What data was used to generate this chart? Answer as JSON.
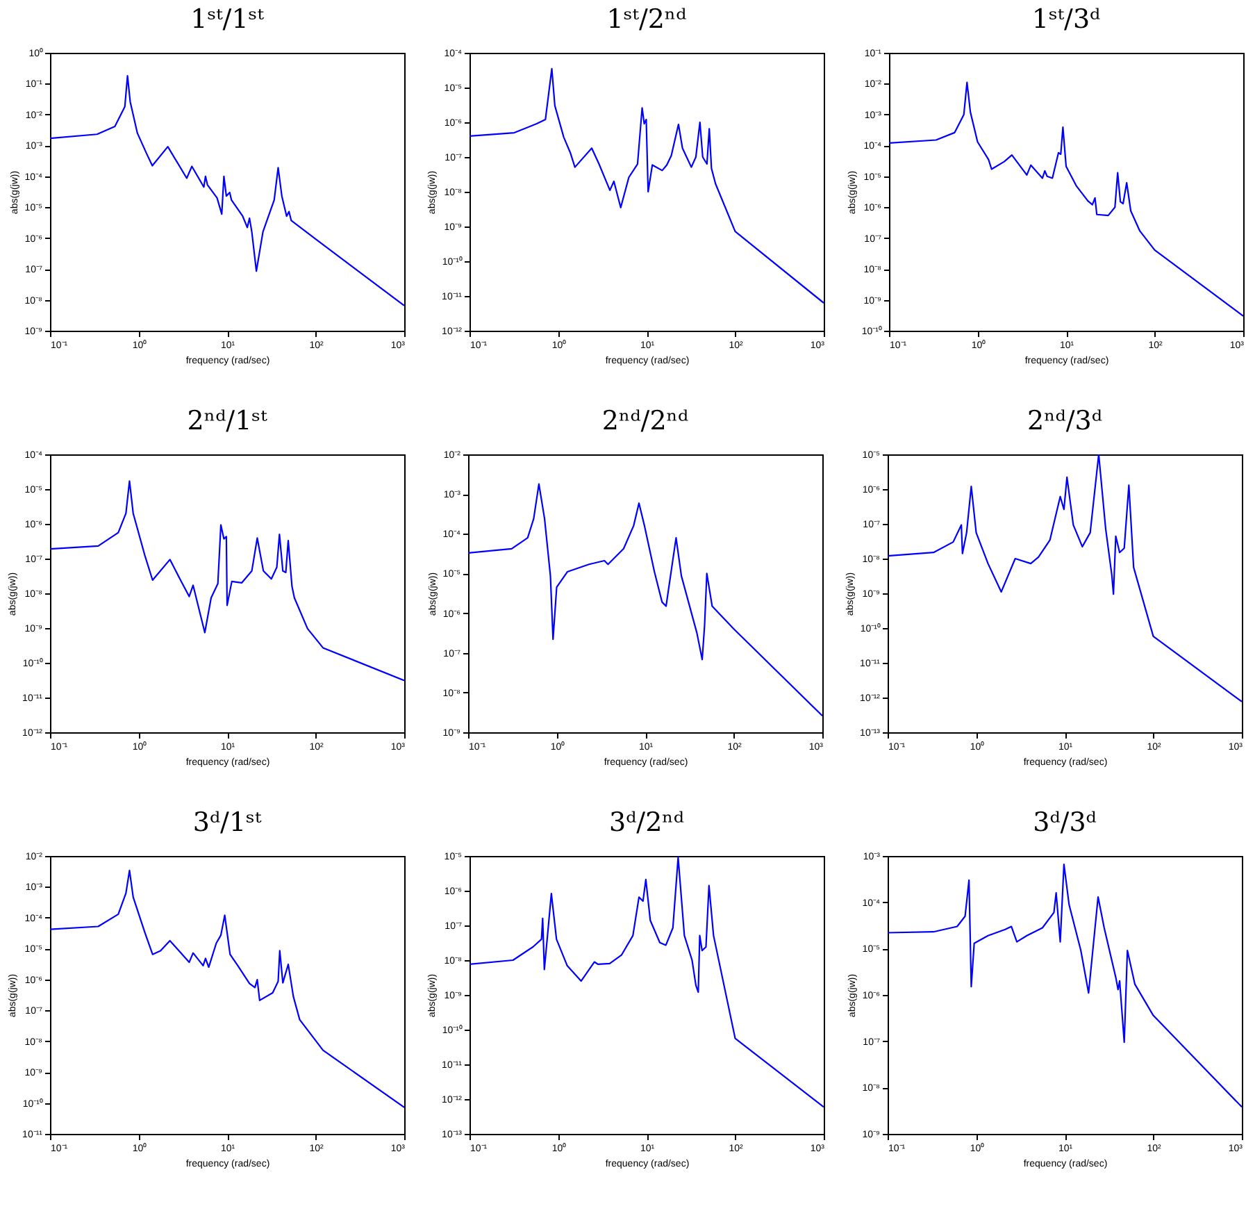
{
  "chart_data": [
    {
      "type": "line",
      "title": "1ˢᵗ/1ˢᵗ",
      "xlabel": "frequency (rad/sec)",
      "ylabel": "abs(g(jw))",
      "log": "xy",
      "xlim": [
        0.1,
        1000
      ],
      "ylim": [
        1e-09,
        1
      ],
      "xticks": [
        {
          "value": 0.1,
          "label": "10⁻¹"
        },
        {
          "value": 1,
          "label": "10⁰"
        },
        {
          "value": 10,
          "label": "10¹"
        },
        {
          "value": 100,
          "label": "10²"
        },
        {
          "value": 1000,
          "label": "10³"
        }
      ],
      "yticks": [
        {
          "value": 1e-09,
          "label": "10⁻⁹"
        },
        {
          "value": 1e-08,
          "label": "10⁻⁸"
        },
        {
          "value": 1e-07,
          "label": "10⁻⁷"
        },
        {
          "value": 1e-06,
          "label": "10⁻⁶"
        },
        {
          "value": 1e-05,
          "label": "10⁻⁵"
        },
        {
          "value": 0.0001,
          "label": "10⁻⁴"
        },
        {
          "value": 0.001,
          "label": "10⁻³"
        },
        {
          "value": 0.01,
          "label": "10⁻²"
        },
        {
          "value": 0.1,
          "label": "10⁻¹"
        },
        {
          "value": 1,
          "label": "10⁰"
        }
      ],
      "x": [
        0.1,
        0.34,
        0.54,
        0.7,
        0.75,
        0.805,
        0.97,
        1.23,
        1.43,
        2.14,
        3.5,
        4.0,
        5.46,
        5.7,
        6.0,
        7.7,
        8.7,
        9.2,
        9.8,
        10.7,
        11.2,
        15,
        16.9,
        17.9,
        19,
        21.4,
        25.4,
        34,
        37.7,
        41.5,
        47,
        50,
        53,
        100,
        1000
      ],
      "series": [
        {
          "color": "#0000ff",
          "values": [
            0.0017,
            0.0023,
            0.0041,
            0.018,
            0.18,
            0.026,
            0.0025,
            0.00055,
            0.00022,
            0.00091,
            8.7e-05,
            0.00021,
            4.5e-05,
            0.0001,
            5.3e-05,
            2e-05,
            6e-06,
            0.0001,
            2.3e-05,
            3e-05,
            1.7e-05,
            5.1e-06,
            2.2e-06,
            4.4e-06,
            1.6e-06,
            8.5e-08,
            1.6e-06,
            1.7e-05,
            0.00019,
            2.3e-05,
            5.1e-06,
            7.2e-06,
            3.7e-06,
            9.3e-07,
            6.5e-09
          ]
        }
      ]
    },
    {
      "type": "line",
      "title": "1ˢᵗ/2ⁿᵈ",
      "xlabel": "frequency (rad/sec)",
      "ylabel": "abs(g(jw))",
      "log": "xy",
      "xlim": [
        0.1,
        1000
      ],
      "ylim": [
        1e-12,
        0.0001
      ],
      "xticks": [
        {
          "value": 0.1,
          "label": "10⁻¹"
        },
        {
          "value": 1,
          "label": "10⁰"
        },
        {
          "value": 10,
          "label": "10¹"
        },
        {
          "value": 100,
          "label": "10²"
        },
        {
          "value": 1000,
          "label": "10³"
        }
      ],
      "yticks": [
        {
          "value": 1e-12,
          "label": "10⁻¹²"
        },
        {
          "value": 1e-11,
          "label": "10⁻¹¹"
        },
        {
          "value": 1e-10,
          "label": "10⁻¹⁰"
        },
        {
          "value": 1e-09,
          "label": "10⁻⁹"
        },
        {
          "value": 1e-08,
          "label": "10⁻⁸"
        },
        {
          "value": 1e-07,
          "label": "10⁻⁷"
        },
        {
          "value": 1e-06,
          "label": "10⁻⁶"
        },
        {
          "value": 1e-05,
          "label": "10⁻⁵"
        },
        {
          "value": 0.0001,
          "label": "10⁻⁴"
        }
      ],
      "x": [
        0.1,
        0.32,
        0.575,
        0.72,
        0.85,
        0.92,
        1.16,
        1.38,
        1.55,
        2.4,
        2.9,
        3.85,
        4.27,
        5.1,
        6.3,
        7.9,
        8.9,
        9.4,
        9.9,
        10.4,
        11.6,
        15,
        16.9,
        19,
        22.9,
        25.4,
        32,
        36,
        40,
        43,
        48,
        51,
        54,
        60,
        100,
        1000
      ],
      "series": [
        {
          "color": "#0000ff",
          "values": [
            4e-07,
            5e-07,
            9.1e-07,
            1.2e-06,
            3.5e-05,
            3e-06,
            3.7e-07,
            1.3e-07,
            5.1e-08,
            1.8e-07,
            6.3e-08,
            1.1e-08,
            2e-08,
            3.5e-09,
            2.6e-08,
            6.3e-08,
            2.6e-06,
            9.1e-07,
            1.2e-06,
            1e-08,
            5.9e-08,
            4.1e-08,
            5.9e-08,
            1.1e-07,
            8.7e-07,
            1.8e-07,
            5.1e-08,
            1e-07,
            1e-06,
            1e-07,
            6.3e-08,
            6.5e-07,
            4.7e-08,
            1.7e-08,
            7.2e-10,
            6.3e-12
          ]
        }
      ]
    },
    {
      "type": "line",
      "title": "1ˢᵗ/3ᵈ",
      "xlabel": "frequency (rad/sec)",
      "ylabel": "abs(g(jw))",
      "log": "xy",
      "xlim": [
        0.1,
        1000
      ],
      "ylim": [
        1e-10,
        0.1
      ],
      "xticks": [
        {
          "value": 0.1,
          "label": "10⁻¹"
        },
        {
          "value": 1,
          "label": "10⁰"
        },
        {
          "value": 10,
          "label": "10¹"
        },
        {
          "value": 100,
          "label": "10²"
        },
        {
          "value": 1000,
          "label": "10³"
        }
      ],
      "yticks": [
        {
          "value": 1e-10,
          "label": "10⁻¹⁰"
        },
        {
          "value": 1e-09,
          "label": "10⁻⁹"
        },
        {
          "value": 1e-08,
          "label": "10⁻⁸"
        },
        {
          "value": 1e-07,
          "label": "10⁻⁷"
        },
        {
          "value": 1e-06,
          "label": "10⁻⁶"
        },
        {
          "value": 1e-05,
          "label": "10⁻⁵"
        },
        {
          "value": 0.0001,
          "label": "10⁻⁴"
        },
        {
          "value": 0.001,
          "label": "10⁻³"
        },
        {
          "value": 0.01,
          "label": "10⁻²"
        },
        {
          "value": 0.1,
          "label": "10⁻¹"
        }
      ],
      "x": [
        0.1,
        0.34,
        0.55,
        0.7,
        0.76,
        0.83,
        1.0,
        1.33,
        1.44,
        2.0,
        2.44,
        3.6,
        4.0,
        5.4,
        5.75,
        6.1,
        7.0,
        8.2,
        8.7,
        9.2,
        10,
        13.1,
        17.6,
        19.8,
        21.2,
        22.2,
        29.9,
        35.6,
        38.2,
        41,
        44,
        48.3,
        53.7,
        68,
        100,
        1000
      ],
      "series": [
        {
          "color": "#0000ff",
          "values": [
            0.00012,
            0.00015,
            0.00026,
            0.001,
            0.011,
            0.0012,
            0.00013,
            3.5e-05,
            1.7e-05,
            3e-05,
            4.9e-05,
            1.1e-05,
            2.3e-05,
            8.7e-06,
            1.5e-05,
            1e-05,
            8.7e-06,
            5.8e-05,
            5.2e-05,
            0.00039,
            2.1e-05,
            4.8e-06,
            1.6e-06,
            1.2e-06,
            2e-06,
            5.8e-07,
            5.4e-07,
            1e-06,
            1.3e-05,
            1.5e-06,
            1.3e-06,
            6.2e-06,
            7.6e-07,
            1.7e-07,
            4.1e-08,
            3e-10
          ]
        }
      ]
    },
    {
      "type": "line",
      "title": "2ⁿᵈ/1ˢᵗ",
      "xlabel": "frequency (rad/sec)",
      "ylabel": "abs(g(jw))",
      "log": "xy",
      "xlim": [
        0.1,
        1000
      ],
      "ylim": [
        1e-12,
        0.0001
      ],
      "xticks": [
        {
          "value": 0.1,
          "label": "10⁻¹"
        },
        {
          "value": 1,
          "label": "10⁰"
        },
        {
          "value": 10,
          "label": "10¹"
        },
        {
          "value": 100,
          "label": "10²"
        },
        {
          "value": 1000,
          "label": "10³"
        }
      ],
      "yticks": [
        {
          "value": 1e-12,
          "label": "10⁻¹²"
        },
        {
          "value": 1e-11,
          "label": "10⁻¹¹"
        },
        {
          "value": 1e-10,
          "label": "10⁻¹⁰"
        },
        {
          "value": 1e-09,
          "label": "10⁻⁹"
        },
        {
          "value": 1e-08,
          "label": "10⁻⁸"
        },
        {
          "value": 1e-07,
          "label": "10⁻⁷"
        },
        {
          "value": 1e-06,
          "label": "10⁻⁶"
        },
        {
          "value": 1e-05,
          "label": "10⁻⁵"
        },
        {
          "value": 0.0001,
          "label": "10⁻⁴"
        }
      ],
      "x": [
        0.1,
        0.35,
        0.59,
        0.72,
        0.79,
        0.87,
        1.17,
        1.44,
        2.26,
        2.93,
        3.73,
        4.13,
        5.6,
        6.6,
        7.86,
        8.5,
        9.2,
        9.8,
        10,
        11.3,
        14.6,
        19,
        21.9,
        25.7,
        31.6,
        36.4,
        39,
        42.6,
        46,
        49,
        54,
        57.5,
        81,
        121,
        1000
      ],
      "series": [
        {
          "color": "#0000ff",
          "values": [
            1.9e-07,
            2.3e-07,
            5.6e-07,
            2e-06,
            1.7e-05,
            2e-06,
            1.3e-07,
            2.4e-08,
            9.4e-08,
            2.6e-08,
            8.1e-09,
            1.7e-08,
            7.4e-10,
            7.4e-09,
            1.9e-08,
            9.3e-07,
            3.7e-07,
            4.3e-07,
            4.5e-09,
            2.2e-08,
            2e-08,
            4.4e-08,
            3.9e-07,
            4.4e-08,
            2.6e-08,
            5.6e-08,
            5e-07,
            4.4e-08,
            4e-08,
            3.3e-07,
            1.6e-08,
            7.4e-09,
            9.6e-10,
            2.7e-10,
            3.1e-11
          ]
        }
      ]
    },
    {
      "type": "line",
      "title": "2ⁿᵈ/2ⁿᵈ",
      "xlabel": "frequency (rad/sec)",
      "ylabel": "abs(g(jw))",
      "log": "xy",
      "xlim": [
        0.1,
        1000
      ],
      "ylim": [
        1e-09,
        0.01
      ],
      "xticks": [
        {
          "value": 0.1,
          "label": "10⁻¹"
        },
        {
          "value": 1,
          "label": "10⁰"
        },
        {
          "value": 10,
          "label": "10¹"
        },
        {
          "value": 100,
          "label": "10²"
        },
        {
          "value": 1000,
          "label": "10³"
        }
      ],
      "yticks": [
        {
          "value": 1e-09,
          "label": "10⁻⁹"
        },
        {
          "value": 1e-08,
          "label": "10⁻⁸"
        },
        {
          "value": 1e-07,
          "label": "10⁻⁷"
        },
        {
          "value": 1e-06,
          "label": "10⁻⁶"
        },
        {
          "value": 1e-05,
          "label": "10⁻⁵"
        },
        {
          "value": 0.0001,
          "label": "10⁻⁴"
        },
        {
          "value": 0.001,
          "label": "10⁻³"
        },
        {
          "value": 0.01,
          "label": "10⁻²"
        }
      ],
      "x": [
        0.1,
        0.31,
        0.47,
        0.55,
        0.63,
        0.73,
        0.85,
        0.91,
        1.0,
        1.32,
        2.32,
        3.46,
        3.8,
        5.7,
        7.4,
        8.5,
        9.8,
        12.7,
        15.5,
        17.2,
        22.3,
        25.6,
        38.3,
        44,
        46.8,
        49.6,
        57,
        100,
        1000
      ],
      "series": [
        {
          "color": "#0000ff",
          "values": [
            3.3e-05,
            4.2e-05,
            7.9e-05,
            0.00024,
            0.0018,
            0.00024,
            8.7e-06,
            2.2e-07,
            4.5e-06,
            1.1e-05,
            1.7e-05,
            2.1e-05,
            1.7e-05,
            4.2e-05,
            0.00016,
            0.00059,
            0.00016,
            1.1e-05,
            1.9e-06,
            1.5e-06,
            7.9e-05,
            8.7e-06,
            3.2e-07,
            6.8e-08,
            4.9e-07,
            1e-05,
            1.5e-06,
            4e-07,
            2.6e-09
          ]
        }
      ]
    },
    {
      "type": "line",
      "title": "2ⁿᵈ/3ᵈ",
      "xlabel": "frequency (rad/sec)",
      "ylabel": "abs(g(jw))",
      "log": "xy",
      "xlim": [
        0.1,
        1000
      ],
      "ylim": [
        1e-13,
        1e-05
      ],
      "xticks": [
        {
          "value": 0.1,
          "label": "10⁻¹"
        },
        {
          "value": 1,
          "label": "10⁰"
        },
        {
          "value": 10,
          "label": "10¹"
        },
        {
          "value": 100,
          "label": "10²"
        },
        {
          "value": 1000,
          "label": "10³"
        }
      ],
      "yticks": [
        {
          "value": 1e-13,
          "label": "10⁻¹³"
        },
        {
          "value": 1e-12,
          "label": "10⁻¹²"
        },
        {
          "value": 1e-11,
          "label": "10⁻¹¹"
        },
        {
          "value": 1e-10,
          "label": "10⁻¹⁰"
        },
        {
          "value": 1e-09,
          "label": "10⁻⁹"
        },
        {
          "value": 1e-08,
          "label": "10⁻⁸"
        },
        {
          "value": 1e-07,
          "label": "10⁻⁷"
        },
        {
          "value": 1e-06,
          "label": "10⁻⁶"
        },
        {
          "value": 1e-05,
          "label": "10⁻⁵"
        }
      ],
      "x": [
        0.1,
        0.33,
        0.55,
        0.68,
        0.7,
        0.78,
        0.88,
        1.0,
        1.36,
        1.92,
        2.76,
        4.13,
        5.05,
        6.8,
        8.9,
        9.8,
        10.6,
        12.5,
        15.8,
        19.4,
        24.2,
        29,
        34,
        35.5,
        37.7,
        41.7,
        47,
        53,
        60,
        100,
        1000
      ],
      "series": [
        {
          "color": "#0000ff",
          "values": [
            1.2e-08,
            1.5e-08,
            3e-08,
            9.3e-08,
            1.4e-08,
            5.6e-08,
            1.2e-06,
            5.6e-08,
            7.2e-09,
            1.1e-09,
            1e-08,
            7.2e-09,
            1.1e-08,
            3.4e-08,
            6.1e-07,
            2.6e-07,
            2.2e-06,
            9.3e-08,
            2.2e-08,
            5.6e-08,
            1e-05,
            7.2e-08,
            3.4e-09,
            9.5e-10,
            4.4e-08,
            1.5e-08,
            2e-08,
            1.3e-06,
            5.6e-09,
            5.8e-11,
            7.6e-13
          ]
        }
      ]
    },
    {
      "type": "line",
      "title": "3ᵈ/1ˢᵗ",
      "xlabel": "frequency (rad/sec)",
      "ylabel": "abs(g(jw))",
      "log": "xy",
      "xlim": [
        0.1,
        1000
      ],
      "ylim": [
        1e-11,
        0.01
      ],
      "xticks": [
        {
          "value": 0.1,
          "label": "10⁻¹"
        },
        {
          "value": 1,
          "label": "10⁰"
        },
        {
          "value": 10,
          "label": "10¹"
        },
        {
          "value": 100,
          "label": "10²"
        },
        {
          "value": 1000,
          "label": "10³"
        }
      ],
      "yticks": [
        {
          "value": 1e-11,
          "label": "10⁻¹¹"
        },
        {
          "value": 1e-10,
          "label": "10⁻¹⁰"
        },
        {
          "value": 1e-09,
          "label": "10⁻⁹"
        },
        {
          "value": 1e-08,
          "label": "10⁻⁸"
        },
        {
          "value": 1e-07,
          "label": "10⁻⁷"
        },
        {
          "value": 1e-06,
          "label": "10⁻⁶"
        },
        {
          "value": 1e-05,
          "label": "10⁻⁵"
        },
        {
          "value": 0.0001,
          "label": "10⁻⁴"
        },
        {
          "value": 0.001,
          "label": "10⁻³"
        },
        {
          "value": 0.01,
          "label": "10⁻²"
        }
      ],
      "x": [
        0.1,
        0.35,
        0.59,
        0.72,
        0.79,
        0.87,
        1.17,
        1.44,
        1.77,
        2.26,
        3.73,
        4.13,
        5.36,
        5.7,
        6.2,
        7.55,
        8.5,
        9.4,
        10.8,
        13.2,
        17.9,
        20.6,
        21.9,
        23.3,
        32.7,
        37.7,
        39.3,
        42.6,
        49,
        56,
        66,
        121,
        1000
      ],
      "series": [
        {
          "color": "#0000ff",
          "values": [
            4.2e-05,
            5.2e-05,
            0.00013,
            0.00062,
            0.0034,
            0.00046,
            3.5e-05,
            6.5e-06,
            8.5e-06,
            1.8e-05,
            3.6e-06,
            7.2e-06,
            2.8e-06,
            4.8e-06,
            2.5e-06,
            1.5e-05,
            2.7e-05,
            0.00012,
            6.5e-06,
            2.8e-06,
            7.4e-07,
            5.5e-07,
            9.8e-07,
            2.1e-07,
            3.7e-07,
            8.7e-07,
            8.5e-06,
            7.8e-07,
            3.1e-06,
            2.8e-07,
            5e-08,
            5.1e-09,
            7.2e-11
          ]
        }
      ]
    },
    {
      "type": "line",
      "title": "3ᵈ/2ⁿᵈ",
      "xlabel": "frequency (rad/sec)",
      "ylabel": "abs(g(jw))",
      "log": "xy",
      "xlim": [
        0.1,
        1000
      ],
      "ylim": [
        1e-13,
        1e-05
      ],
      "xticks": [
        {
          "value": 0.1,
          "label": "10⁻¹"
        },
        {
          "value": 1,
          "label": "10⁰"
        },
        {
          "value": 10,
          "label": "10¹"
        },
        {
          "value": 100,
          "label": "10²"
        },
        {
          "value": 1000,
          "label": "10³"
        }
      ],
      "yticks": [
        {
          "value": 1e-13,
          "label": "10⁻¹³"
        },
        {
          "value": 1e-12,
          "label": "10⁻¹²"
        },
        {
          "value": 1e-11,
          "label": "10⁻¹¹"
        },
        {
          "value": 1e-10,
          "label": "10⁻¹⁰"
        },
        {
          "value": 1e-09,
          "label": "10⁻⁹"
        },
        {
          "value": 1e-08,
          "label": "10⁻⁸"
        },
        {
          "value": 1e-07,
          "label": "10⁻⁷"
        },
        {
          "value": 1e-06,
          "label": "10⁻⁶"
        },
        {
          "value": 1e-05,
          "label": "10⁻⁵"
        }
      ],
      "x": [
        0.1,
        0.31,
        0.52,
        0.65,
        0.67,
        0.7,
        0.76,
        0.84,
        0.96,
        1.27,
        1.82,
        2.57,
        2.83,
        3.83,
        5.2,
        7.0,
        8.2,
        9.1,
        9.8,
        11.0,
        14.1,
        16.5,
        19.8,
        22.7,
        26.7,
        32.6,
        36,
        38.3,
        39.8,
        42.3,
        46.8,
        50.6,
        57,
        100,
        1000
      ],
      "series": [
        {
          "color": "#0000ff",
          "values": [
            7.6e-09,
            1e-08,
            2.4e-08,
            4e-08,
            1.6e-07,
            5.4e-09,
            5.1e-08,
            8.3e-07,
            4e-08,
            6.9e-09,
            2.5e-09,
            8.9e-09,
            7.6e-09,
            8e-09,
            1.4e-08,
            5.1e-08,
            6.5e-07,
            5e-07,
            2.1e-06,
            1.4e-07,
            3.2e-08,
            2.7e-08,
            8.5e-08,
            9.1e-06,
            5.1e-08,
            1e-08,
            1.9e-09,
            1.2e-09,
            5.1e-08,
            1.9e-08,
            2.4e-08,
            1.4e-06,
            5.1e-08,
            5.6e-11,
            5.9e-13
          ]
        }
      ]
    },
    {
      "type": "line",
      "title": "3ᵈ/3ᵈ",
      "xlabel": "frequency (rad/sec)",
      "ylabel": "abs(g(jw))",
      "log": "xy",
      "xlim": [
        0.1,
        1000
      ],
      "ylim": [
        1e-09,
        0.001
      ],
      "xticks": [
        {
          "value": 0.1,
          "label": "10⁻¹"
        },
        {
          "value": 1,
          "label": "10⁰"
        },
        {
          "value": 10,
          "label": "10¹"
        },
        {
          "value": 100,
          "label": "10²"
        },
        {
          "value": 1000,
          "label": "10³"
        }
      ],
      "yticks": [
        {
          "value": 1e-09,
          "label": "10⁻⁹"
        },
        {
          "value": 1e-08,
          "label": "10⁻⁸"
        },
        {
          "value": 1e-07,
          "label": "10⁻⁷"
        },
        {
          "value": 1e-06,
          "label": "10⁻⁶"
        },
        {
          "value": 1e-05,
          "label": "10⁻⁵"
        },
        {
          "value": 0.0001,
          "label": "10⁻⁴"
        },
        {
          "value": 0.001,
          "label": "10⁻³"
        }
      ],
      "x": [
        0.1,
        0.33,
        0.61,
        0.75,
        0.83,
        0.88,
        0.95,
        1.36,
        2.13,
        2.5,
        2.88,
        3.73,
        5.6,
        7.55,
        8.0,
        8.9,
        9.8,
        11.2,
        15.2,
        18.6,
        23.8,
        27.9,
        37.7,
        40,
        41.7,
        47,
        51,
        62,
        100,
        1000
      ],
      "series": [
        {
          "color": "#0000ff",
          "values": [
            2.2e-05,
            2.3e-05,
            3e-05,
            5e-05,
            0.0003,
            1.5e-06,
            1.3e-05,
            1.9e-05,
            2.6e-05,
            3e-05,
            1.4e-05,
            1.9e-05,
            2.8e-05,
            6e-05,
            0.00016,
            1.4e-05,
            0.00066,
            8.9e-05,
            9.1e-06,
            1.1e-06,
            0.00013,
            2.8e-05,
            2.4e-06,
            1.3e-06,
            2e-06,
            9.5e-08,
            9.1e-06,
            1.7e-06,
            3.6e-07,
            3.8e-09
          ]
        }
      ]
    }
  ]
}
